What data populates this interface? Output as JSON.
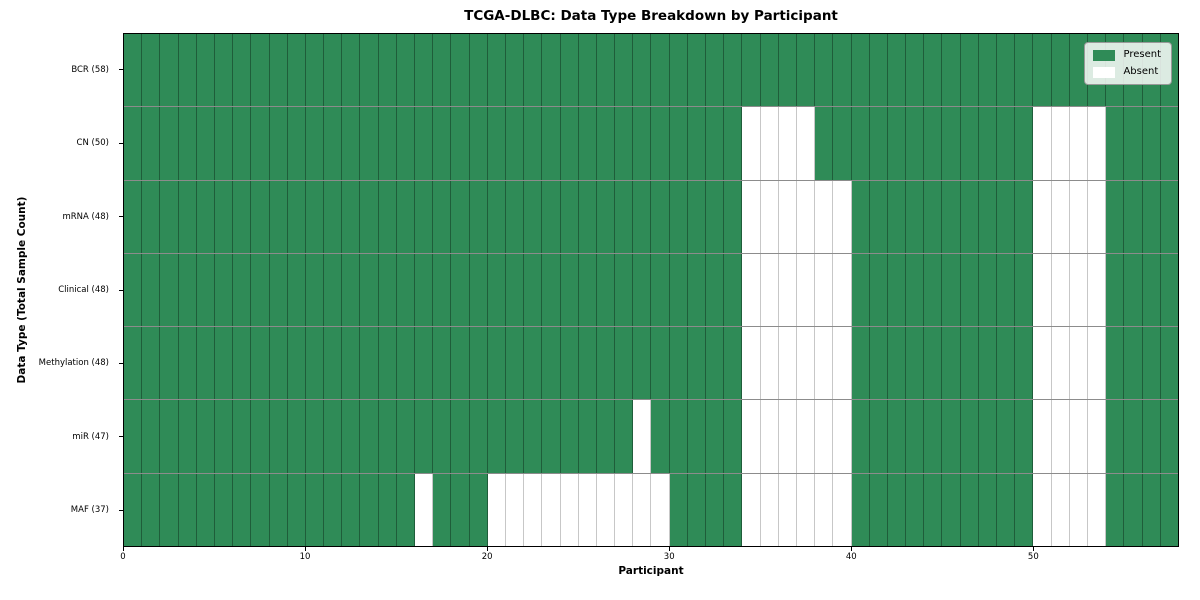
{
  "title": "TCGA-DLBC: Data Type Breakdown by Participant",
  "xlabel": "Participant",
  "ylabel": "Data Type (Total Sample Count)",
  "legend": {
    "present_label": "Present",
    "absent_label": "Absent"
  },
  "colors": {
    "present": "#2f8b57",
    "absent": "#ffffff"
  },
  "chart_data": {
    "type": "heatmap",
    "xlabel": "Participant",
    "ylabel": "Data Type (Total Sample Count)",
    "title": "TCGA-DLBC: Data Type Breakdown by Participant",
    "n_participants": 58,
    "x_range": [
      0,
      58
    ],
    "x_ticks": [
      0,
      10,
      20,
      30,
      40,
      50
    ],
    "legend_entries": [
      "Present",
      "Absent"
    ],
    "legend_position": "upper right",
    "rows": [
      {
        "label": "BCR (58)",
        "total": 58,
        "absent": []
      },
      {
        "label": "CN (50)",
        "total": 50,
        "absent": [
          34,
          35,
          36,
          37,
          50,
          51,
          52,
          53
        ]
      },
      {
        "label": "mRNA (48)",
        "total": 48,
        "absent": [
          34,
          35,
          36,
          37,
          38,
          39,
          50,
          51,
          52,
          53
        ]
      },
      {
        "label": "Clinical (48)",
        "total": 48,
        "absent": [
          34,
          35,
          36,
          37,
          38,
          39,
          50,
          51,
          52,
          53
        ]
      },
      {
        "label": "Methylation (48)",
        "total": 48,
        "absent": [
          34,
          35,
          36,
          37,
          38,
          39,
          50,
          51,
          52,
          53
        ]
      },
      {
        "label": "miR (47)",
        "total": 47,
        "absent": [
          28,
          34,
          35,
          36,
          37,
          38,
          39,
          50,
          51,
          52,
          53
        ]
      },
      {
        "label": "MAF (37)",
        "total": 37,
        "absent": [
          16,
          20,
          21,
          22,
          23,
          24,
          25,
          26,
          27,
          28,
          29,
          34,
          35,
          36,
          37,
          38,
          39,
          50,
          51,
          52,
          53
        ]
      }
    ]
  }
}
